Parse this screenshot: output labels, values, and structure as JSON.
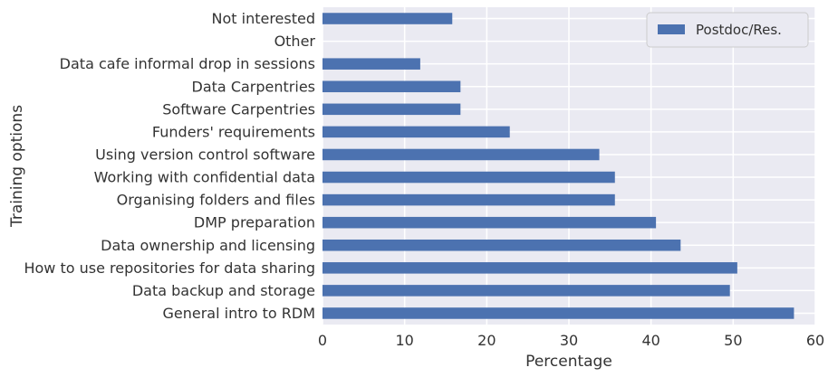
{
  "chart_data": {
    "type": "bar",
    "orientation": "horizontal",
    "categories": [
      "General intro to RDM",
      "Data backup and storage",
      "How to use repositories for data sharing",
      "Data ownership and licensing",
      "DMP preparation",
      "Organising folders and files",
      "Working with confidential data",
      "Using version control software",
      "Funders' requirements",
      "Software Carpentries",
      "Data Carpentries",
      "Data cafe informal drop in sessions",
      "Other",
      "Not interested"
    ],
    "series": [
      {
        "name": "Postdoc/Res.",
        "values": [
          57.4,
          49.6,
          50.5,
          43.6,
          40.6,
          35.6,
          35.6,
          33.7,
          22.8,
          16.8,
          16.8,
          11.9,
          0,
          15.8
        ]
      }
    ],
    "xlabel": "Percentage",
    "ylabel": "Training options",
    "xlim": [
      0,
      60
    ],
    "xticks": [
      0,
      10,
      20,
      30,
      40,
      50,
      60
    ],
    "grid": true,
    "legend_position": "top-right",
    "colors": {
      "bar": "#4c72b0",
      "plot_background": "#eaeaf2",
      "grid": "#ffffff",
      "text": "#333333"
    }
  }
}
